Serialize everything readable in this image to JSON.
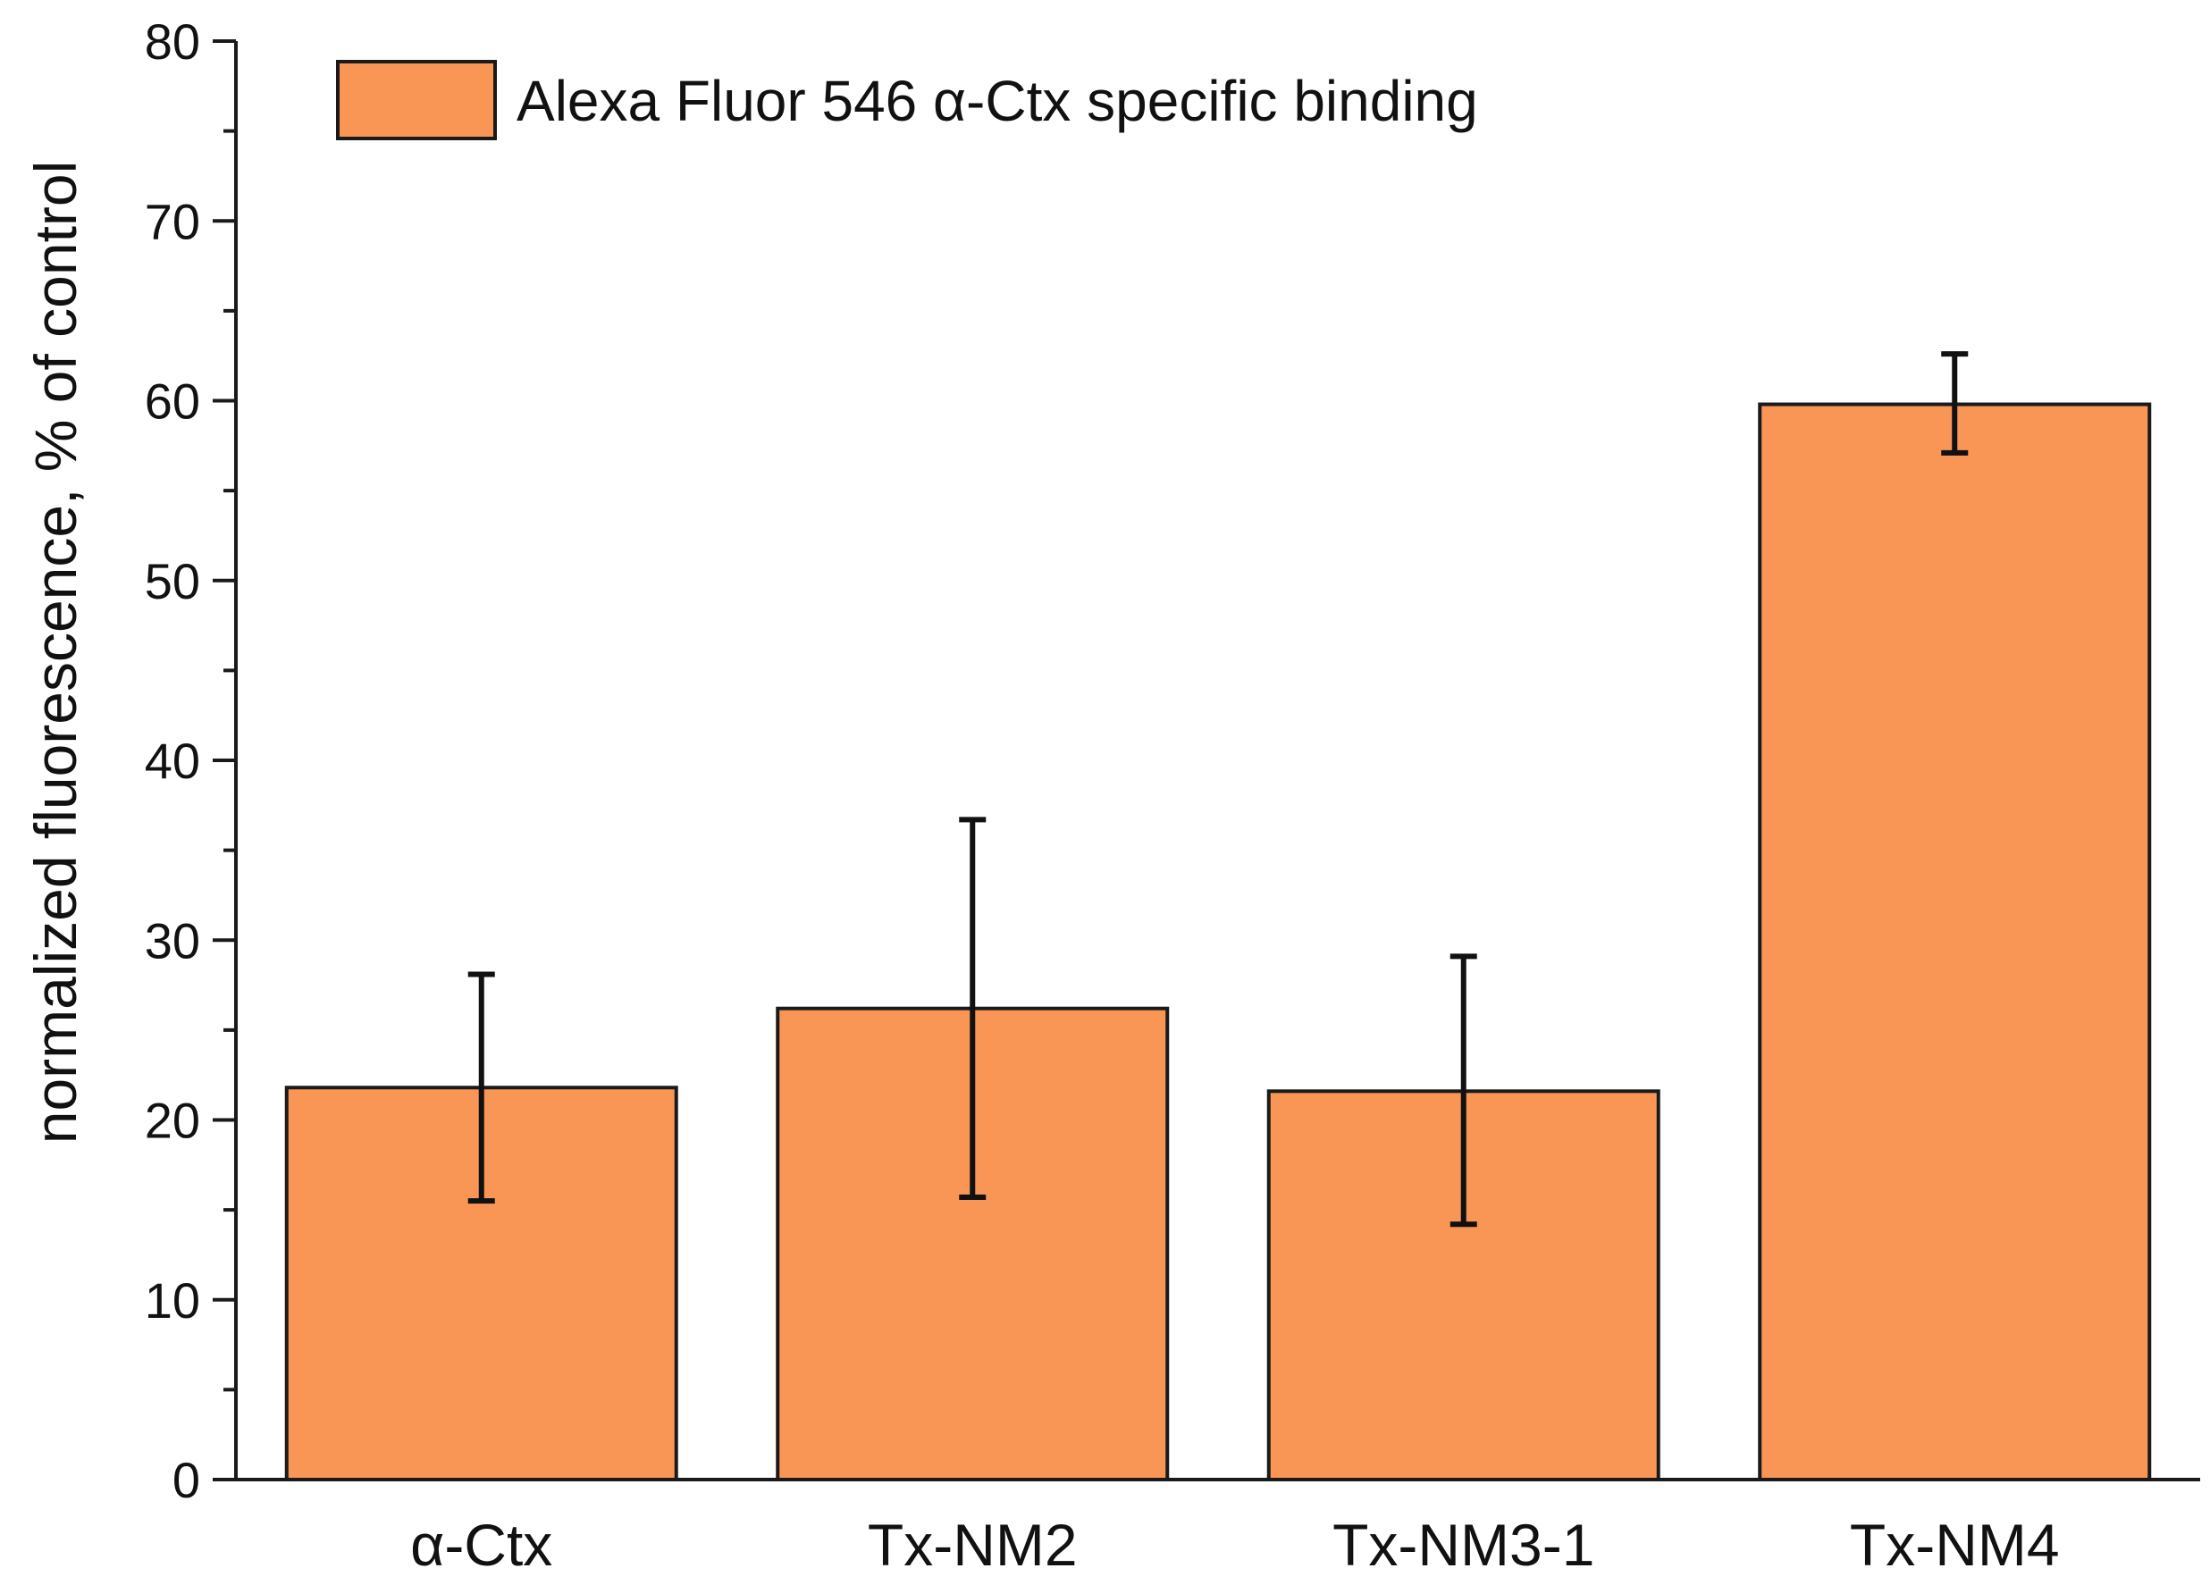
{
  "chart_data": {
    "type": "bar",
    "title": "",
    "xlabel": "",
    "ylabel": "normalized fluorescence, % of control",
    "ylim": [
      0,
      80
    ],
    "yticks": [
      0,
      10,
      20,
      30,
      40,
      50,
      60,
      70,
      80
    ],
    "categories": [
      "α-Ctx",
      "Tx-NM2",
      "Tx-NM3-1",
      "Tx-NM4"
    ],
    "series": [
      {
        "name": "Alexa Fluor 546 α-Ctx specific binding",
        "color": "#FA9655",
        "values": [
          21.8,
          26.2,
          21.6,
          59.8
        ],
        "error_low": [
          15.5,
          15.7,
          14.2,
          57.1
        ],
        "error_high": [
          28.1,
          36.7,
          29.1,
          62.6
        ]
      }
    ],
    "legend": {
      "position": "top-left",
      "label": "Alexa Fluor 546 α-Ctx specific binding"
    },
    "grid": false
  }
}
